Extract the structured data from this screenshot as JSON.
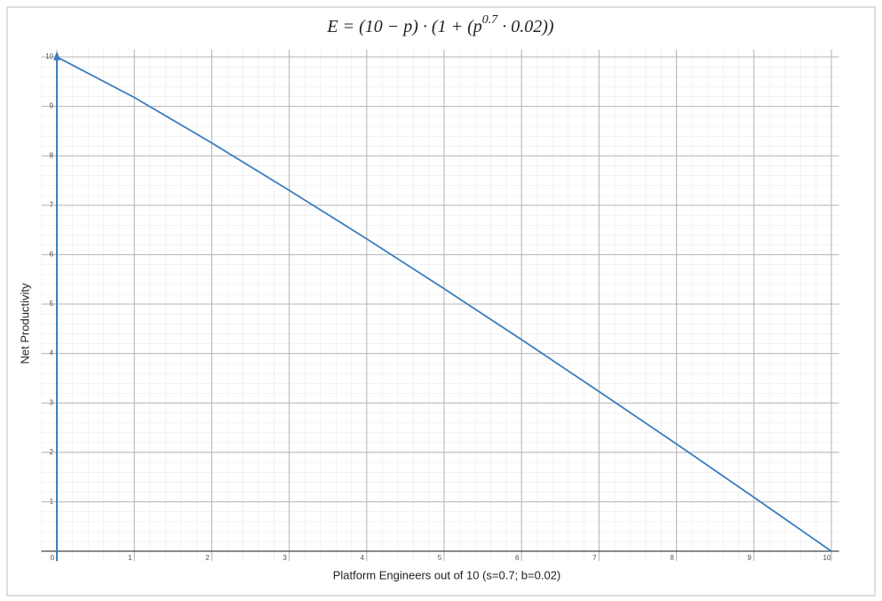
{
  "chart_data": {
    "type": "line",
    "title": [
      "E = (10 − p) · (1 + (p",
      "0.7",
      " · 0.02))"
    ],
    "x_label": "Platform Engineers out of 10 (s=0.7; b=0.02)",
    "y_label": "Net Productivity",
    "x": [
      0,
      1,
      2,
      3,
      4,
      5,
      6,
      7,
      8,
      9,
      10
    ],
    "series": [
      {
        "color": "#3a7dbf",
        "values": [
          10,
          9.18,
          8.26,
          7.3,
          6.32,
          5.31,
          4.28,
          3.23,
          2.17,
          1.09,
          0
        ]
      }
    ],
    "xlim": [
      -0.2,
      10.1
    ],
    "ylim": [
      -0.2,
      10.15
    ],
    "xticks": [
      0,
      1,
      2,
      3,
      4,
      5,
      6,
      7,
      8,
      9,
      10
    ],
    "yticks": [
      1,
      2,
      3,
      4,
      5,
      6,
      7,
      8,
      9,
      10
    ],
    "grid": true
  }
}
